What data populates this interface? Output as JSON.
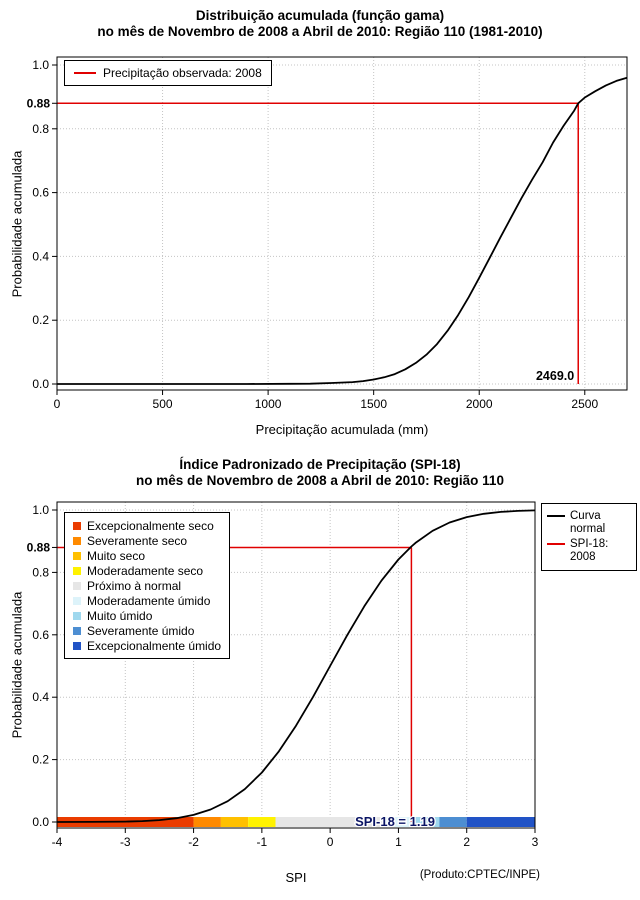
{
  "page": {
    "background": "#FFFFFF"
  },
  "colors": {
    "observed_red": "#E00000",
    "curve_black": "#000000",
    "grid_gray": "#C4C4C4",
    "annotation_navy": "#0A1464"
  },
  "chart_data": [
    {
      "type": "line",
      "title": "Distribuição acumulada (função gama)",
      "subtitle": "no mês de Novembro de 2008 a Abril de 2010: Região 110 (1981-2010)",
      "xlabel": "Precipitação acumulada (mm)",
      "ylabel": "Probabilidade acumulada",
      "xlim": [
        0,
        2700
      ],
      "ylim": [
        0,
        1
      ],
      "xticks": [
        0,
        500,
        1000,
        1500,
        2000,
        2500
      ],
      "yticks": [
        0,
        0.2,
        0.4,
        0.6,
        0.8,
        1
      ],
      "special_ytick": 0.88,
      "grid": true,
      "legend": {
        "label": "Precipitação observada: 2008",
        "color": "#E00000"
      },
      "observed": {
        "x": 2469.0,
        "y": 0.88,
        "label": "2469.0"
      },
      "series": [
        {
          "name": "gamma-cdf-curve",
          "color": "#000000",
          "points": [
            [
              0,
              0
            ],
            [
              300,
              0
            ],
            [
              600,
              0
            ],
            [
              900,
              0
            ],
            [
              1100,
              0.0005
            ],
            [
              1200,
              0.001
            ],
            [
              1300,
              0.003
            ],
            [
              1400,
              0.006
            ],
            [
              1450,
              0.009
            ],
            [
              1500,
              0.014
            ],
            [
              1550,
              0.021
            ],
            [
              1600,
              0.031
            ],
            [
              1650,
              0.046
            ],
            [
              1700,
              0.066
            ],
            [
              1750,
              0.092
            ],
            [
              1800,
              0.125
            ],
            [
              1850,
              0.167
            ],
            [
              1900,
              0.216
            ],
            [
              1950,
              0.272
            ],
            [
              2000,
              0.333
            ],
            [
              2050,
              0.396
            ],
            [
              2100,
              0.459
            ],
            [
              2150,
              0.521
            ],
            [
              2200,
              0.582
            ],
            [
              2250,
              0.64
            ],
            [
              2300,
              0.695
            ],
            [
              2350,
              0.757
            ],
            [
              2400,
              0.81
            ],
            [
              2450,
              0.857
            ],
            [
              2469,
              0.88
            ],
            [
              2500,
              0.898
            ],
            [
              2550,
              0.918
            ],
            [
              2600,
              0.936
            ],
            [
              2650,
              0.95
            ],
            [
              2700,
              0.96
            ]
          ]
        }
      ]
    },
    {
      "type": "line",
      "title": "Índice Padronizado de Precipitação (SPI-18)",
      "subtitle": "no mês de Novembro de 2008 a Abril de 2010: Região 110",
      "xlabel": "SPI",
      "ylabel": "Probabilidade acumulada",
      "footer": "(Produto:CPTEC/INPE)",
      "xlim": [
        -4,
        3
      ],
      "ylim": [
        0,
        1
      ],
      "xticks": [
        -4,
        -3,
        -2,
        -1,
        0,
        1,
        2,
        3
      ],
      "yticks": [
        0,
        0.2,
        0.4,
        0.6,
        0.8,
        1
      ],
      "special_ytick": 0.88,
      "grid": true,
      "observed": {
        "x": 1.19,
        "y": 0.88
      },
      "annotation": {
        "text": "SPI-18 = 1.19",
        "x_center": 0.95,
        "color": "#0A1464"
      },
      "curve_legend": [
        {
          "label": "Curva normal",
          "color": "#000000"
        },
        {
          "label": "SPI-18: 2008",
          "color": "#E00000"
        }
      ],
      "categories_legend": [
        {
          "label": "Excepcionalmente seco",
          "color": "#EA3C00"
        },
        {
          "label": "Severamente seco",
          "color": "#FF8A00"
        },
        {
          "label": "Muito seco",
          "color": "#FFC000"
        },
        {
          "label": "Moderadamente seco",
          "color": "#FFF200"
        },
        {
          "label": "Próximo à normal",
          "color": "#E6E6E6"
        },
        {
          "label": "Moderadamente úmido",
          "color": "#DDF3FA"
        },
        {
          "label": "Muito úmido",
          "color": "#9FD8EE"
        },
        {
          "label": "Severamente úmido",
          "color": "#4D8ED2"
        },
        {
          "label": "Excepcionalmente úmido",
          "color": "#2153C6"
        }
      ],
      "color_bar": [
        {
          "from": -4,
          "to": -2,
          "color": "#EA3C00"
        },
        {
          "from": -2,
          "to": -1.6,
          "color": "#FF8A00"
        },
        {
          "from": -1.6,
          "to": -1.2,
          "color": "#FFC000"
        },
        {
          "from": -1.2,
          "to": -0.8,
          "color": "#FFF200"
        },
        {
          "from": -0.8,
          "to": 0.8,
          "color": "#E6E6E6"
        },
        {
          "from": 0.8,
          "to": 1.2,
          "color": "#DDF3FA"
        },
        {
          "from": 1.2,
          "to": 1.6,
          "color": "#9FD8EE"
        },
        {
          "from": 1.6,
          "to": 2,
          "color": "#4D8ED2"
        },
        {
          "from": 2,
          "to": 3,
          "color": "#2153C6"
        }
      ],
      "series": [
        {
          "name": "normal-cdf-curve",
          "color": "#000000",
          "points": [
            [
              -4,
              0.0
            ],
            [
              -3.5,
              0.0002
            ],
            [
              -3,
              0.0013
            ],
            [
              -2.75,
              0.003
            ],
            [
              -2.5,
              0.0062
            ],
            [
              -2.25,
              0.0122
            ],
            [
              -2,
              0.0228
            ],
            [
              -1.75,
              0.0401
            ],
            [
              -1.5,
              0.0668
            ],
            [
              -1.25,
              0.1056
            ],
            [
              -1,
              0.1587
            ],
            [
              -0.75,
              0.2266
            ],
            [
              -0.5,
              0.3085
            ],
            [
              -0.25,
              0.4013
            ],
            [
              0,
              0.5
            ],
            [
              0.25,
              0.5987
            ],
            [
              0.5,
              0.6915
            ],
            [
              0.75,
              0.7734
            ],
            [
              1,
              0.8413
            ],
            [
              1.19,
              0.883
            ],
            [
              1.25,
              0.8944
            ],
            [
              1.5,
              0.9332
            ],
            [
              1.75,
              0.9599
            ],
            [
              2,
              0.9772
            ],
            [
              2.25,
              0.9878
            ],
            [
              2.5,
              0.9938
            ],
            [
              2.75,
              0.997
            ],
            [
              3,
              0.9987
            ]
          ]
        }
      ]
    }
  ]
}
